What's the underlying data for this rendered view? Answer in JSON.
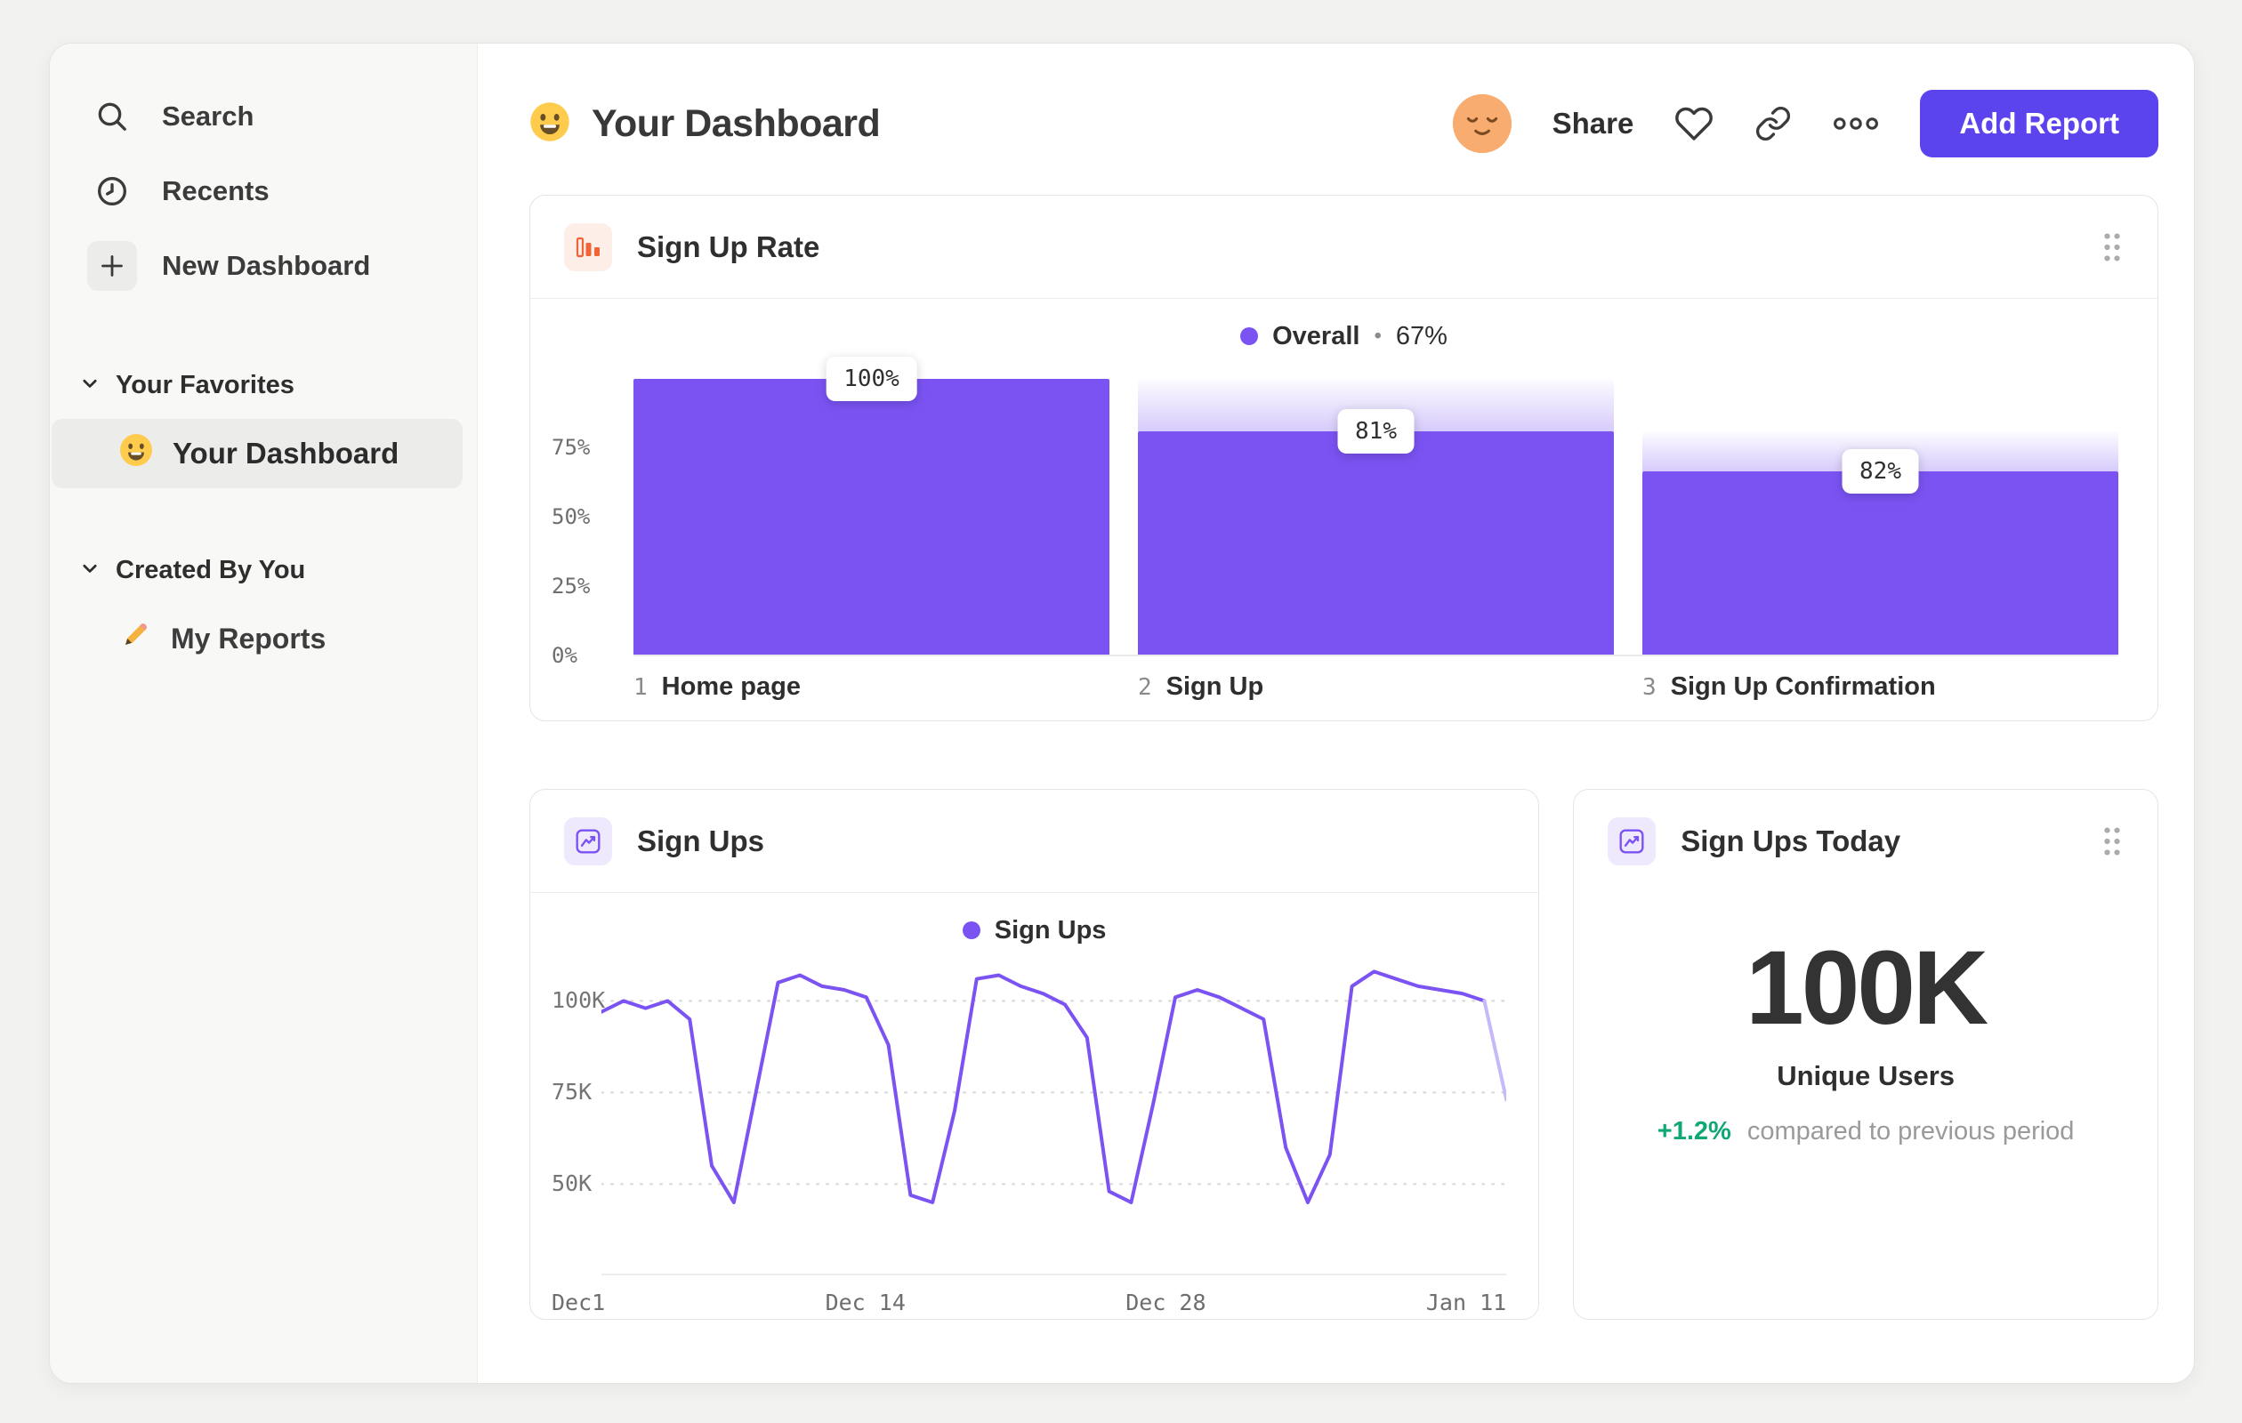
{
  "colors": {
    "accent": "#5B44EE",
    "series_purple": "#7B53F3",
    "series_purple_faded": "#C7B9F8",
    "orange": "#F26436",
    "green": "#0FA873"
  },
  "sidebar": {
    "search": "Search",
    "recents": "Recents",
    "new_dashboard": "New Dashboard",
    "favorites_title": "Your Favorites",
    "favorites": [
      {
        "label": "Your Dashboard"
      }
    ],
    "created_title": "Created By You",
    "created": [
      {
        "label": "My Reports"
      }
    ]
  },
  "header": {
    "title": "Your Dashboard",
    "share": "Share",
    "add_report": "Add Report"
  },
  "chart_data": [
    {
      "type": "bar",
      "subtype": "funnel",
      "title": "Sign Up Rate",
      "legend": {
        "label": "Overall",
        "sep": "•",
        "value": "67%"
      },
      "yticks": [
        {
          "label": "75%"
        },
        {
          "label": "50%"
        },
        {
          "label": "25%"
        },
        {
          "label": "0%"
        }
      ],
      "ylim": [
        0,
        100
      ],
      "steps": [
        {
          "index": "1",
          "label": "Home page",
          "step_conversion": "100%",
          "cumulative_pct": 100,
          "prev_cumulative_pct": 100
        },
        {
          "index": "2",
          "label": "Sign Up",
          "step_conversion": "81%",
          "cumulative_pct": 81,
          "prev_cumulative_pct": 100
        },
        {
          "index": "3",
          "label": "Sign Up Confirmation",
          "step_conversion": "82%",
          "cumulative_pct": 66.4,
          "prev_cumulative_pct": 81
        }
      ]
    },
    {
      "type": "line",
      "title": "Sign Ups",
      "legend": "Sign Ups",
      "unit": "K",
      "color": "#7B53F3",
      "tail_color": "#C7B9F8",
      "yticks": [
        {
          "label": "100K",
          "value": 100
        },
        {
          "label": "75K",
          "value": 75
        },
        {
          "label": "50K",
          "value": 50
        }
      ],
      "xticks": [
        "Dec1",
        "Dec 14",
        "Dec 28",
        "Jan 11"
      ],
      "y_draw_max": 111.5,
      "y_draw_min": 25.1,
      "values": [
        97,
        100,
        98,
        100,
        95,
        55,
        45,
        75,
        105,
        107,
        104,
        103,
        101,
        88,
        47,
        45,
        70,
        106,
        107,
        104,
        102,
        99,
        90,
        48,
        45,
        72,
        101,
        103,
        101,
        98,
        95,
        60,
        45,
        58,
        104,
        108,
        106,
        104,
        103,
        102,
        100,
        73
      ]
    },
    {
      "type": "big_number",
      "title": "Sign Ups Today",
      "value": "100K",
      "label": "Unique Users",
      "delta": "+1.2%",
      "delta_note": "compared to previous period"
    }
  ]
}
